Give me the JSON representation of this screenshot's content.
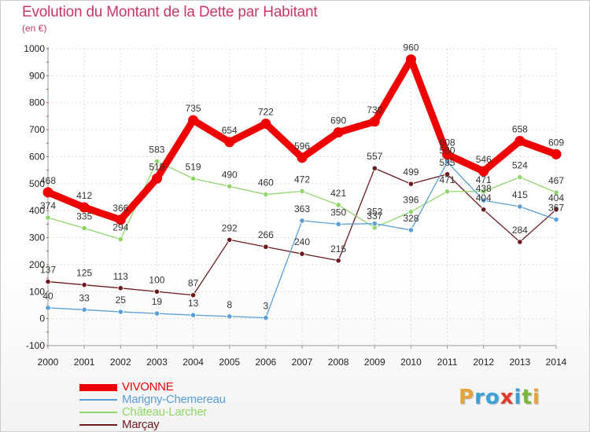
{
  "title": "Evolution du Montant de la Dette par Habitant",
  "unit": "(en €)",
  "logo": {
    "letters": [
      "P",
      "r",
      "o",
      "x",
      "i",
      "t",
      "i"
    ],
    "colors": [
      "#e8a23a",
      "#3aa0d8",
      "#3aa0d8",
      "#e23a2a",
      "#3aa0d8",
      "#7ab83a",
      "#e8a23a"
    ]
  },
  "chart_data": {
    "type": "line",
    "title": "Evolution du Montant de la Dette par Habitant",
    "ylabel": "(en €)",
    "xlabel": "",
    "x": [
      2000,
      2001,
      2002,
      2003,
      2004,
      2005,
      2006,
      2007,
      2008,
      2009,
      2010,
      2011,
      2012,
      2013,
      2014
    ],
    "ylim": [
      -100,
      1000
    ],
    "yticks": [
      -100,
      0,
      100,
      200,
      300,
      400,
      500,
      600,
      700,
      800,
      900,
      1000
    ],
    "grid": true,
    "legend_position": "bottom-left",
    "series": [
      {
        "name": "Marçay",
        "color": "#6b1a1e",
        "values": [
          137,
          125,
          113,
          100,
          87,
          292,
          266,
          240,
          215,
          557,
          499,
          535,
          404,
          284,
          404
        ]
      },
      {
        "name": "Château-Larcher",
        "color": "#8fd66a",
        "values": [
          374,
          335,
          294,
          583,
          519,
          490,
          460,
          472,
          421,
          337,
          396,
          471,
          471,
          524,
          467
        ]
      },
      {
        "name": "Marigny-Chemereau",
        "color": "#5a9ed6",
        "values": [
          40,
          33,
          25,
          19,
          13,
          8,
          3,
          363,
          350,
          352,
          328,
          580,
          438,
          415,
          367
        ]
      },
      {
        "name": "VIVONNE",
        "color": "#ee0000",
        "values": [
          468,
          412,
          366,
          519,
          735,
          654,
          722,
          596,
          690,
          730,
          960,
          608,
          546,
          658,
          609
        ]
      }
    ],
    "legend": [
      "VIVONNE",
      "Marigny-Chemereau",
      "Château-Larcher",
      "Marçay"
    ]
  }
}
